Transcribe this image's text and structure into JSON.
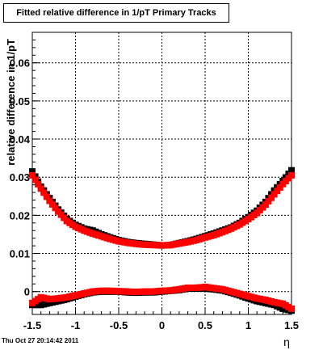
{
  "chart_data": {
    "type": "scatter",
    "title": "Fitted relative difference in 1/pT  Primary Tracks",
    "xlabel": "η",
    "ylabel": "relative difference in 1/pT",
    "xlim": [
      -1.5,
      1.5
    ],
    "ylim": [
      -0.006,
      0.068
    ],
    "grid": true,
    "x_ticks": [
      "-1.5",
      "-1",
      "-0.5",
      "0",
      "0.5",
      "1",
      "1.5"
    ],
    "y_ticks": [
      "0",
      "0.01",
      "0.02",
      "0.03",
      "0.04",
      "0.05",
      "0.06"
    ],
    "series": [
      {
        "color": "#000000",
        "marker": "square",
        "x": [
          -1.5,
          -1.4,
          -1.3,
          -1.2,
          -1.1,
          -1.0,
          -0.9,
          -0.8,
          -0.7,
          -0.6,
          -0.5,
          -0.4,
          -0.3,
          -0.2,
          -0.1,
          0.0,
          0.1,
          0.2,
          0.3,
          0.4,
          0.5,
          0.6,
          0.7,
          0.8,
          0.9,
          1.0,
          1.1,
          1.2,
          1.3,
          1.4,
          1.5
        ],
        "y": [
          0.0315,
          0.0275,
          0.0245,
          0.0215,
          0.019,
          0.0175,
          0.0165,
          0.016,
          0.015,
          0.0142,
          0.0135,
          0.013,
          0.0127,
          0.0125,
          0.0123,
          0.0121,
          0.0122,
          0.0127,
          0.0132,
          0.0138,
          0.0145,
          0.0152,
          0.016,
          0.0168,
          0.018,
          0.0195,
          0.0212,
          0.0235,
          0.0265,
          0.029,
          0.0318
        ]
      },
      {
        "color": "#ff0000",
        "marker": "square",
        "x": [
          -1.5,
          -1.4,
          -1.3,
          -1.2,
          -1.1,
          -1.0,
          -0.9,
          -0.8,
          -0.7,
          -0.6,
          -0.5,
          -0.4,
          -0.3,
          -0.2,
          -0.1,
          0.0,
          0.1,
          0.2,
          0.3,
          0.4,
          0.5,
          0.6,
          0.7,
          0.8,
          0.9,
          1.0,
          1.1,
          1.2,
          1.3,
          1.4,
          1.5
        ],
        "y": [
          0.0305,
          0.027,
          0.0238,
          0.021,
          0.0185,
          0.017,
          0.016,
          0.0152,
          0.0145,
          0.0138,
          0.0132,
          0.0128,
          0.0125,
          0.0123,
          0.0122,
          0.0121,
          0.0122,
          0.0126,
          0.013,
          0.0135,
          0.0142,
          0.0148,
          0.0156,
          0.0165,
          0.0176,
          0.019,
          0.0206,
          0.0228,
          0.0255,
          0.0282,
          0.0305
        ]
      },
      {
        "color": "#000000",
        "marker": "square",
        "x": [
          -1.5,
          -1.4,
          -1.3,
          -1.2,
          -1.1,
          -1.0,
          -0.9,
          -0.8,
          -0.7,
          -0.6,
          -0.5,
          -0.4,
          -0.3,
          -0.2,
          -0.1,
          0.0,
          0.1,
          0.2,
          0.3,
          0.4,
          0.5,
          0.6,
          0.7,
          0.8,
          0.9,
          1.0,
          1.1,
          1.2,
          1.3,
          1.4,
          1.5
        ],
        "y": [
          -0.0035,
          -0.0035,
          -0.003,
          -0.0025,
          -0.002,
          -0.0013,
          -0.0007,
          -0.0002,
          0.0,
          0.0,
          0.0,
          -0.0002,
          -0.0003,
          -0.0002,
          -0.0002,
          0.0,
          0.0002,
          0.0004,
          0.0008,
          0.0008,
          0.0008,
          0.0006,
          0.0003,
          -0.0003,
          -0.001,
          -0.0018,
          -0.0025,
          -0.003,
          -0.0035,
          -0.0045,
          -0.005
        ]
      },
      {
        "color": "#ff0000",
        "marker": "square",
        "x": [
          -1.5,
          -1.4,
          -1.3,
          -1.2,
          -1.1,
          -1.0,
          -0.9,
          -0.8,
          -0.7,
          -0.6,
          -0.5,
          -0.4,
          -0.3,
          -0.2,
          -0.1,
          0.0,
          0.1,
          0.2,
          0.3,
          0.4,
          0.5,
          0.6,
          0.7,
          0.8,
          0.9,
          1.0,
          1.1,
          1.2,
          1.3,
          1.4,
          1.5
        ],
        "y": [
          -0.003,
          -0.0015,
          -0.002,
          -0.0018,
          -0.0015,
          -0.001,
          -0.0005,
          0.0,
          0.0002,
          0.0002,
          0.0001,
          0.0,
          -0.0001,
          0.0,
          0.0,
          0.0002,
          0.0003,
          0.0006,
          0.001,
          0.001,
          0.0012,
          0.0009,
          0.0006,
          0.0,
          -0.0006,
          -0.0012,
          -0.0018,
          -0.0022,
          -0.0028,
          -0.0032,
          -0.0045
        ]
      }
    ]
  },
  "footer": {
    "timestamp": "Thu Oct 27 20:14:42 2011"
  }
}
